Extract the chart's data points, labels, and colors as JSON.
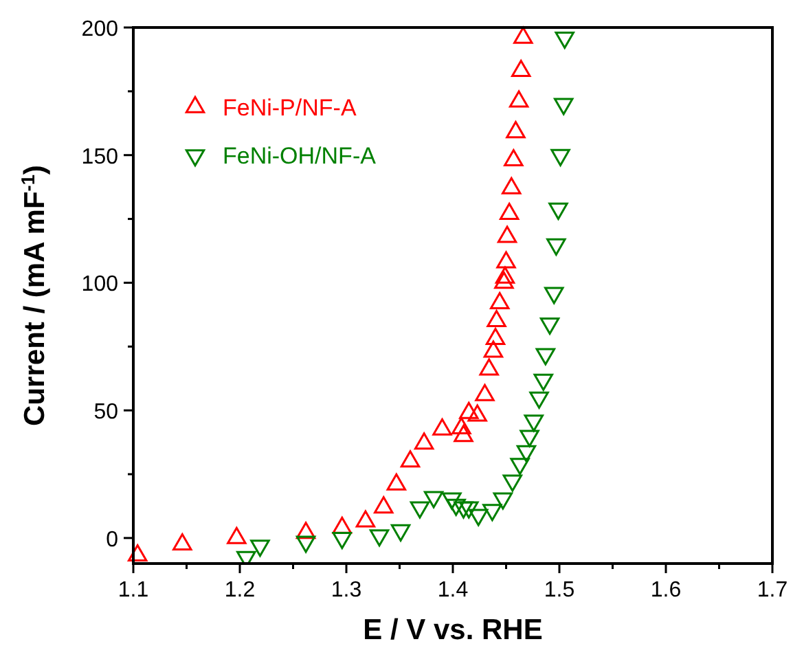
{
  "chart_data": {
    "type": "scatter",
    "xlabel": "E / V vs. RHE",
    "ylabel": "Current / (mA mF$^{-1}$)",
    "xlim": [
      1.1,
      1.7
    ],
    "ylim": [
      -10,
      200
    ],
    "xticks": [
      1.1,
      {
        "value": 1.15,
        "label": null
      },
      1.2,
      {
        "value": 1.25,
        "label": null
      },
      1.3,
      {
        "value": 1.35,
        "label": null
      },
      1.4,
      {
        "value": 1.45,
        "label": null
      },
      1.5,
      {
        "value": 1.55,
        "label": null
      },
      1.6,
      {
        "value": 1.65,
        "label": null
      },
      1.7
    ],
    "yticks": [
      0,
      {
        "value": 25,
        "label": null
      },
      50,
      {
        "value": 75,
        "label": null
      },
      100,
      {
        "value": 125,
        "label": null
      },
      150,
      {
        "value": 175,
        "label": null
      },
      200
    ],
    "grid": false,
    "legend": "top left",
    "series": [
      {
        "name": "FeNi-P/NF-A",
        "color": "#ff0000",
        "marker": "triangle",
        "x": [
          1.104,
          1.146,
          1.197,
          1.262,
          1.296,
          1.318,
          1.335,
          1.347,
          1.36,
          1.373,
          1.39,
          1.408,
          1.41,
          1.415,
          1.423,
          1.43,
          1.434,
          1.438,
          1.44,
          1.441,
          1.444,
          1.448,
          1.449,
          1.45,
          1.451,
          1.453,
          1.455,
          1.457,
          1.459,
          1.462,
          1.464,
          1.466
        ],
        "values": [
          -6.8,
          -2.5,
          0,
          2,
          4,
          6.5,
          12,
          21,
          30,
          37,
          42.5,
          43,
          40,
          49,
          48,
          56,
          66,
          73,
          78,
          85,
          92,
          100,
          102,
          108,
          118,
          127,
          137,
          148,
          159,
          171,
          183,
          196
        ]
      },
      {
        "name": "FeNi-OH/NF-A",
        "color": "#008000",
        "marker": "triangle-down",
        "x": [
          1.206,
          1.219,
          1.262,
          1.296,
          1.331,
          1.351,
          1.369,
          1.382,
          1.399,
          1.403,
          1.41,
          1.415,
          1.424,
          1.437,
          1.447,
          1.456,
          1.463,
          1.469,
          1.472,
          1.476,
          1.481,
          1.485,
          1.487,
          1.491,
          1.495,
          1.497,
          1.499,
          1.501,
          1.504,
          1.505
        ],
        "values": [
          -7.5,
          -3,
          -1.5,
          0,
          1,
          3,
          12,
          16,
          15.5,
          13,
          12,
          12,
          9,
          11,
          15.5,
          22.5,
          29,
          34,
          40,
          46,
          55,
          62,
          72,
          84,
          96,
          115,
          129,
          150,
          170,
          196
        ]
      }
    ]
  }
}
